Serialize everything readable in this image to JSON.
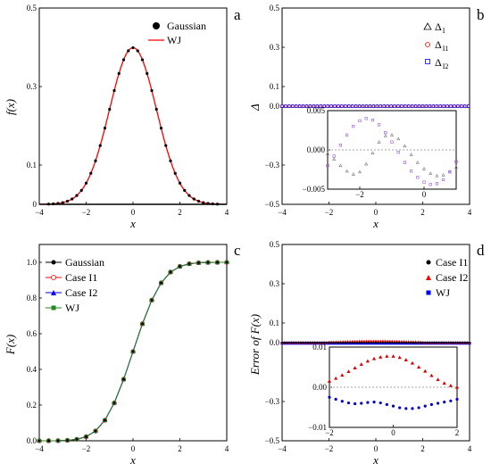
{
  "chart_data": [
    {
      "id": "a",
      "panel_label": "a",
      "type": "line",
      "xlabel": "x",
      "ylabel": "f(x)",
      "xlim": [
        -4,
        4
      ],
      "ylim": [
        0,
        0.5
      ],
      "xticks": [
        -4,
        -2,
        0,
        2,
        4
      ],
      "xtick_labels": [
        "−4",
        "−2",
        "0",
        "2",
        "4"
      ],
      "yticks": [
        0,
        0.1,
        0.3,
        0.5
      ],
      "ytick_labels": [
        "0",
        "0.1",
        "0.3",
        "0.5"
      ],
      "legend_position": "top-right",
      "series": [
        {
          "name": "Gaussian",
          "marker": "filled-circle",
          "color": "#000000",
          "x": [
            -3.6,
            -3.4,
            -3.2,
            -3.0,
            -2.8,
            -2.6,
            -2.4,
            -2.2,
            -2.0,
            -1.8,
            -1.6,
            -1.4,
            -1.2,
            -1.0,
            -0.8,
            -0.6,
            -0.4,
            -0.2,
            0.0,
            0.2,
            0.4,
            0.6,
            0.8,
            1.0,
            1.2,
            1.4,
            1.6,
            1.8,
            2.0,
            2.2,
            2.4,
            2.6,
            2.8,
            3.0,
            3.2,
            3.4,
            3.6
          ],
          "y": [
            0.0006,
            0.0012,
            0.0024,
            0.0044,
            0.0079,
            0.0136,
            0.0224,
            0.0355,
            0.054,
            0.079,
            0.1109,
            0.1497,
            0.1942,
            0.242,
            0.2897,
            0.3332,
            0.3683,
            0.391,
            0.3989,
            0.391,
            0.3683,
            0.3332,
            0.2897,
            0.242,
            0.1942,
            0.1497,
            0.1109,
            0.079,
            0.054,
            0.0355,
            0.0224,
            0.0136,
            0.0079,
            0.0044,
            0.0024,
            0.0012,
            0.0006
          ]
        },
        {
          "name": "WJ",
          "marker": "line",
          "color": "#ff0000",
          "x": [
            -4,
            -3.6,
            -3.2,
            -2.8,
            -2.4,
            -2.0,
            -1.6,
            -1.2,
            -0.8,
            -0.4,
            0,
            0.4,
            0.8,
            1.2,
            1.6,
            2.0,
            2.4,
            2.8,
            3.2,
            3.6,
            4
          ],
          "y": [
            0.0001,
            0.0006,
            0.0024,
            0.0079,
            0.0224,
            0.054,
            0.1109,
            0.1942,
            0.2897,
            0.3683,
            0.3989,
            0.3683,
            0.2897,
            0.1942,
            0.1109,
            0.054,
            0.0224,
            0.0079,
            0.0024,
            0.0006,
            0.0001
          ]
        }
      ]
    },
    {
      "id": "b",
      "panel_label": "b",
      "type": "scatter",
      "xlabel": "x",
      "ylabel": "Δ",
      "xlim": [
        -4,
        4
      ],
      "ylim": [
        -0.5,
        0.5
      ],
      "xticks": [
        -4,
        -2,
        0,
        2,
        4
      ],
      "xtick_labels": [
        "−4",
        "−2",
        "0",
        "2",
        "4"
      ],
      "yticks": [
        -0.5,
        -0.3,
        0.0,
        0.1,
        0.3,
        0.5
      ],
      "ytick_labels": [
        "−0.5",
        "−0.3",
        "0.0",
        "0.1",
        "0.3",
        "0.5"
      ],
      "legend_position": "top-right",
      "series": [
        {
          "name": "Δ",
          "subscript": "I",
          "marker": "open-triangle",
          "color": "#000000"
        },
        {
          "name": "Δ",
          "subscript": "I1",
          "marker": "open-circle",
          "color": "#ff0000"
        },
        {
          "name": "Δ",
          "subscript": "I2",
          "marker": "open-square",
          "color": "#0000ff"
        }
      ],
      "inset": {
        "xlim": [
          -3,
          1
        ],
        "ylim": [
          -0.005,
          0.005
        ],
        "xticks": [
          -2,
          0
        ],
        "xtick_labels": [
          "−2",
          "0"
        ],
        "yticks": [
          -0.005,
          0.0,
          0.005
        ],
        "ytick_labels": [
          "−0.005",
          "0.000",
          "0.005"
        ],
        "series": [
          {
            "name": "Δ I",
            "color": "#777777",
            "x": [
              -3,
              -2.8,
              -2.6,
              -2.4,
              -2.2,
              -2.0,
              -1.8,
              -1.6,
              -1.4,
              -1.2,
              -1.0,
              -0.8,
              -0.6,
              -0.4,
              -0.2,
              0,
              0.2,
              0.4,
              0.6,
              0.8,
              1.0
            ],
            "y": [
              -0.0005,
              -0.0012,
              -0.002,
              -0.0027,
              -0.0031,
              -0.0028,
              -0.0018,
              -0.0004,
              0.001,
              0.0018,
              0.0019,
              0.0014,
              0.0005,
              -0.0006,
              -0.0016,
              -0.0024,
              -0.003,
              -0.0033,
              -0.0032,
              -0.0028,
              -0.0022
            ]
          },
          {
            "name": "Δ I2",
            "color": "#9955dd",
            "x": [
              -3,
              -2.8,
              -2.6,
              -2.4,
              -2.2,
              -2.0,
              -1.8,
              -1.6,
              -1.4,
              -1.2,
              -1.0,
              -0.8,
              -0.6,
              -0.4,
              -0.2,
              0,
              0.2,
              0.4,
              0.6,
              0.8,
              1.0
            ],
            "y": [
              -0.002,
              -0.0008,
              0.0006,
              0.0019,
              0.003,
              0.0037,
              0.004,
              0.0038,
              0.0032,
              0.0022,
              0.001,
              -0.0003,
              -0.0016,
              -0.0027,
              -0.0035,
              -0.0041,
              -0.0044,
              -0.0043,
              -0.0038,
              -0.0028,
              -0.0015
            ]
          }
        ]
      }
    },
    {
      "id": "c",
      "panel_label": "c",
      "type": "line",
      "xlabel": "x",
      "ylabel": "F(x)",
      "xlim": [
        -4,
        4
      ],
      "ylim": [
        0,
        1.1
      ],
      "xticks": [
        -4,
        -2,
        0,
        2,
        4
      ],
      "xtick_labels": [
        "−4",
        "−2",
        "0",
        "2",
        "4"
      ],
      "yticks": [
        0,
        0.2,
        0.4,
        0.6,
        0.8,
        1.0
      ],
      "ytick_labels": [
        "0.0",
        "0.2",
        "0.4",
        "0.6",
        "0.8",
        "1.0"
      ],
      "legend_position": "top-left",
      "x": [
        -4,
        -3.6,
        -3.2,
        -2.8,
        -2.4,
        -2.0,
        -1.6,
        -1.2,
        -0.8,
        -0.4,
        0,
        0.4,
        0.8,
        1.2,
        1.6,
        2.0,
        2.4,
        2.8,
        3.2,
        3.6,
        4
      ],
      "y": [
        0.0,
        0.0002,
        0.0007,
        0.0026,
        0.0082,
        0.0228,
        0.0548,
        0.1151,
        0.2119,
        0.3446,
        0.5,
        0.6554,
        0.7881,
        0.8849,
        0.9452,
        0.9772,
        0.9918,
        0.9974,
        0.9993,
        0.9998,
        1.0
      ],
      "series": [
        {
          "name": "Gaussian",
          "marker": "filled-circle",
          "color": "#000000"
        },
        {
          "name": "Case I1",
          "marker": "open-circle",
          "color": "#ff0000"
        },
        {
          "name": "Case I2",
          "marker": "filled-triangle",
          "color": "#0000ff"
        },
        {
          "name": "WJ",
          "marker": "filled-square",
          "color": "#228B22"
        }
      ]
    },
    {
      "id": "d",
      "panel_label": "d",
      "type": "scatter",
      "xlabel": "x",
      "ylabel": "Error of F(x)",
      "xlim": [
        -4,
        4
      ],
      "ylim": [
        -0.5,
        0.5
      ],
      "xticks": [
        -4,
        -2,
        0,
        2,
        4
      ],
      "xtick_labels": [
        "−4",
        "−2",
        "0",
        "2",
        "4"
      ],
      "yticks": [
        -0.5,
        -0.3,
        0.0,
        0.1,
        0.3,
        0.5
      ],
      "ytick_labels": [
        "−0.5",
        "−0.3",
        "0.0",
        "0.1",
        "0.3",
        "0.5"
      ],
      "legend_position": "top-right",
      "series": [
        {
          "name": "Case I1",
          "marker": "filled-circle",
          "color": "#000000"
        },
        {
          "name": "Case I2",
          "marker": "filled-triangle",
          "color": "#ff0000"
        },
        {
          "name": "WJ",
          "marker": "filled-square",
          "color": "#0000ff"
        }
      ],
      "inset": {
        "xlim": [
          -2,
          2
        ],
        "ylim": [
          -0.01,
          0.01
        ],
        "xticks": [
          -2,
          0,
          2
        ],
        "xtick_labels": [
          "−2",
          "0",
          "2"
        ],
        "yticks": [
          -0.01,
          0.0,
          0.01
        ],
        "ytick_labels": [
          "−0.01",
          "0.00",
          "0.01"
        ],
        "series": [
          {
            "name": "Case I2",
            "color": "#dd0000",
            "x": [
              -2,
              -1.8,
              -1.6,
              -1.4,
              -1.2,
              -1.0,
              -0.8,
              -0.6,
              -0.4,
              -0.2,
              0,
              0.2,
              0.4,
              0.6,
              0.8,
              1.0,
              1.2,
              1.4,
              1.6,
              1.8,
              2.0
            ],
            "y": [
              0.0015,
              0.0022,
              0.003,
              0.0039,
              0.0048,
              0.0057,
              0.0065,
              0.0071,
              0.0075,
              0.0077,
              0.0077,
              0.0074,
              0.0068,
              0.006,
              0.005,
              0.004,
              0.0029,
              0.0019,
              0.001,
              0.0004,
              0.0
            ]
          },
          {
            "name": "WJ",
            "color": "#0000cc",
            "x": [
              -2,
              -1.8,
              -1.6,
              -1.4,
              -1.2,
              -1.0,
              -0.8,
              -0.6,
              -0.4,
              -0.2,
              0,
              0.2,
              0.4,
              0.6,
              0.8,
              1.0,
              1.2,
              1.4,
              1.6,
              1.8,
              2.0
            ],
            "y": [
              -0.0025,
              -0.003,
              -0.0035,
              -0.0039,
              -0.0041,
              -0.004,
              -0.0038,
              -0.0037,
              -0.0039,
              -0.0043,
              -0.0047,
              -0.0051,
              -0.0053,
              -0.0053,
              -0.0051,
              -0.0047,
              -0.0043,
              -0.004,
              -0.0037,
              -0.0034,
              -0.003
            ]
          }
        ]
      }
    }
  ]
}
